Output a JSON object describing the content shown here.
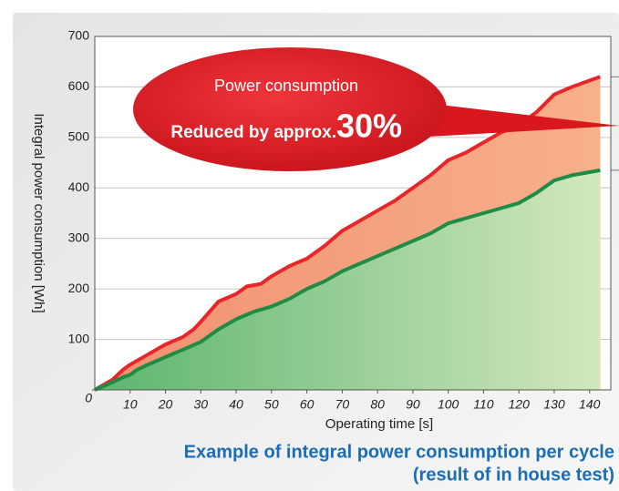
{
  "chart_data": {
    "type": "line",
    "title": "Example of integral power consumption per cycle",
    "subtitle": "(result of in house test)",
    "x_label": "Operating time [s]",
    "y_label": "Integral power consumption [Wh]",
    "annotation": {
      "line1": "Power consumption",
      "line2": "Reduced by approx.",
      "emphasis": "30%"
    },
    "xlim": [
      0,
      146
    ],
    "ylim": [
      0,
      700
    ],
    "xticks": [
      10,
      20,
      30,
      40,
      50,
      60,
      70,
      80,
      90,
      100,
      110,
      120,
      130,
      140
    ],
    "yticks": [
      0,
      100,
      200,
      300,
      400,
      500,
      600,
      700
    ],
    "grid": true,
    "series": [
      {
        "color": "#e8262a",
        "x": [
          0,
          5,
          8,
          10,
          15,
          20,
          25,
          28,
          30,
          35,
          40,
          43,
          47,
          50,
          55,
          60,
          65,
          70,
          75,
          80,
          85,
          90,
          95,
          100,
          105,
          110,
          115,
          120,
          125,
          130,
          135,
          143
        ],
        "values": [
          0,
          20,
          40,
          50,
          70,
          90,
          105,
          120,
          135,
          175,
          190,
          205,
          210,
          225,
          245,
          260,
          285,
          315,
          335,
          355,
          375,
          400,
          425,
          455,
          470,
          490,
          510,
          525,
          550,
          585,
          600,
          620
        ]
      },
      {
        "color": "#1e8c45",
        "x": [
          0,
          5,
          8,
          10,
          12,
          15,
          20,
          25,
          30,
          35,
          40,
          45,
          50,
          55,
          60,
          65,
          70,
          75,
          80,
          85,
          90,
          95,
          100,
          105,
          110,
          115,
          120,
          125,
          130,
          135,
          143
        ],
        "values": [
          0,
          15,
          25,
          30,
          40,
          50,
          65,
          80,
          95,
          120,
          140,
          155,
          165,
          180,
          200,
          215,
          235,
          250,
          265,
          280,
          295,
          310,
          330,
          340,
          350,
          360,
          370,
          390,
          415,
          425,
          435
        ]
      }
    ]
  }
}
